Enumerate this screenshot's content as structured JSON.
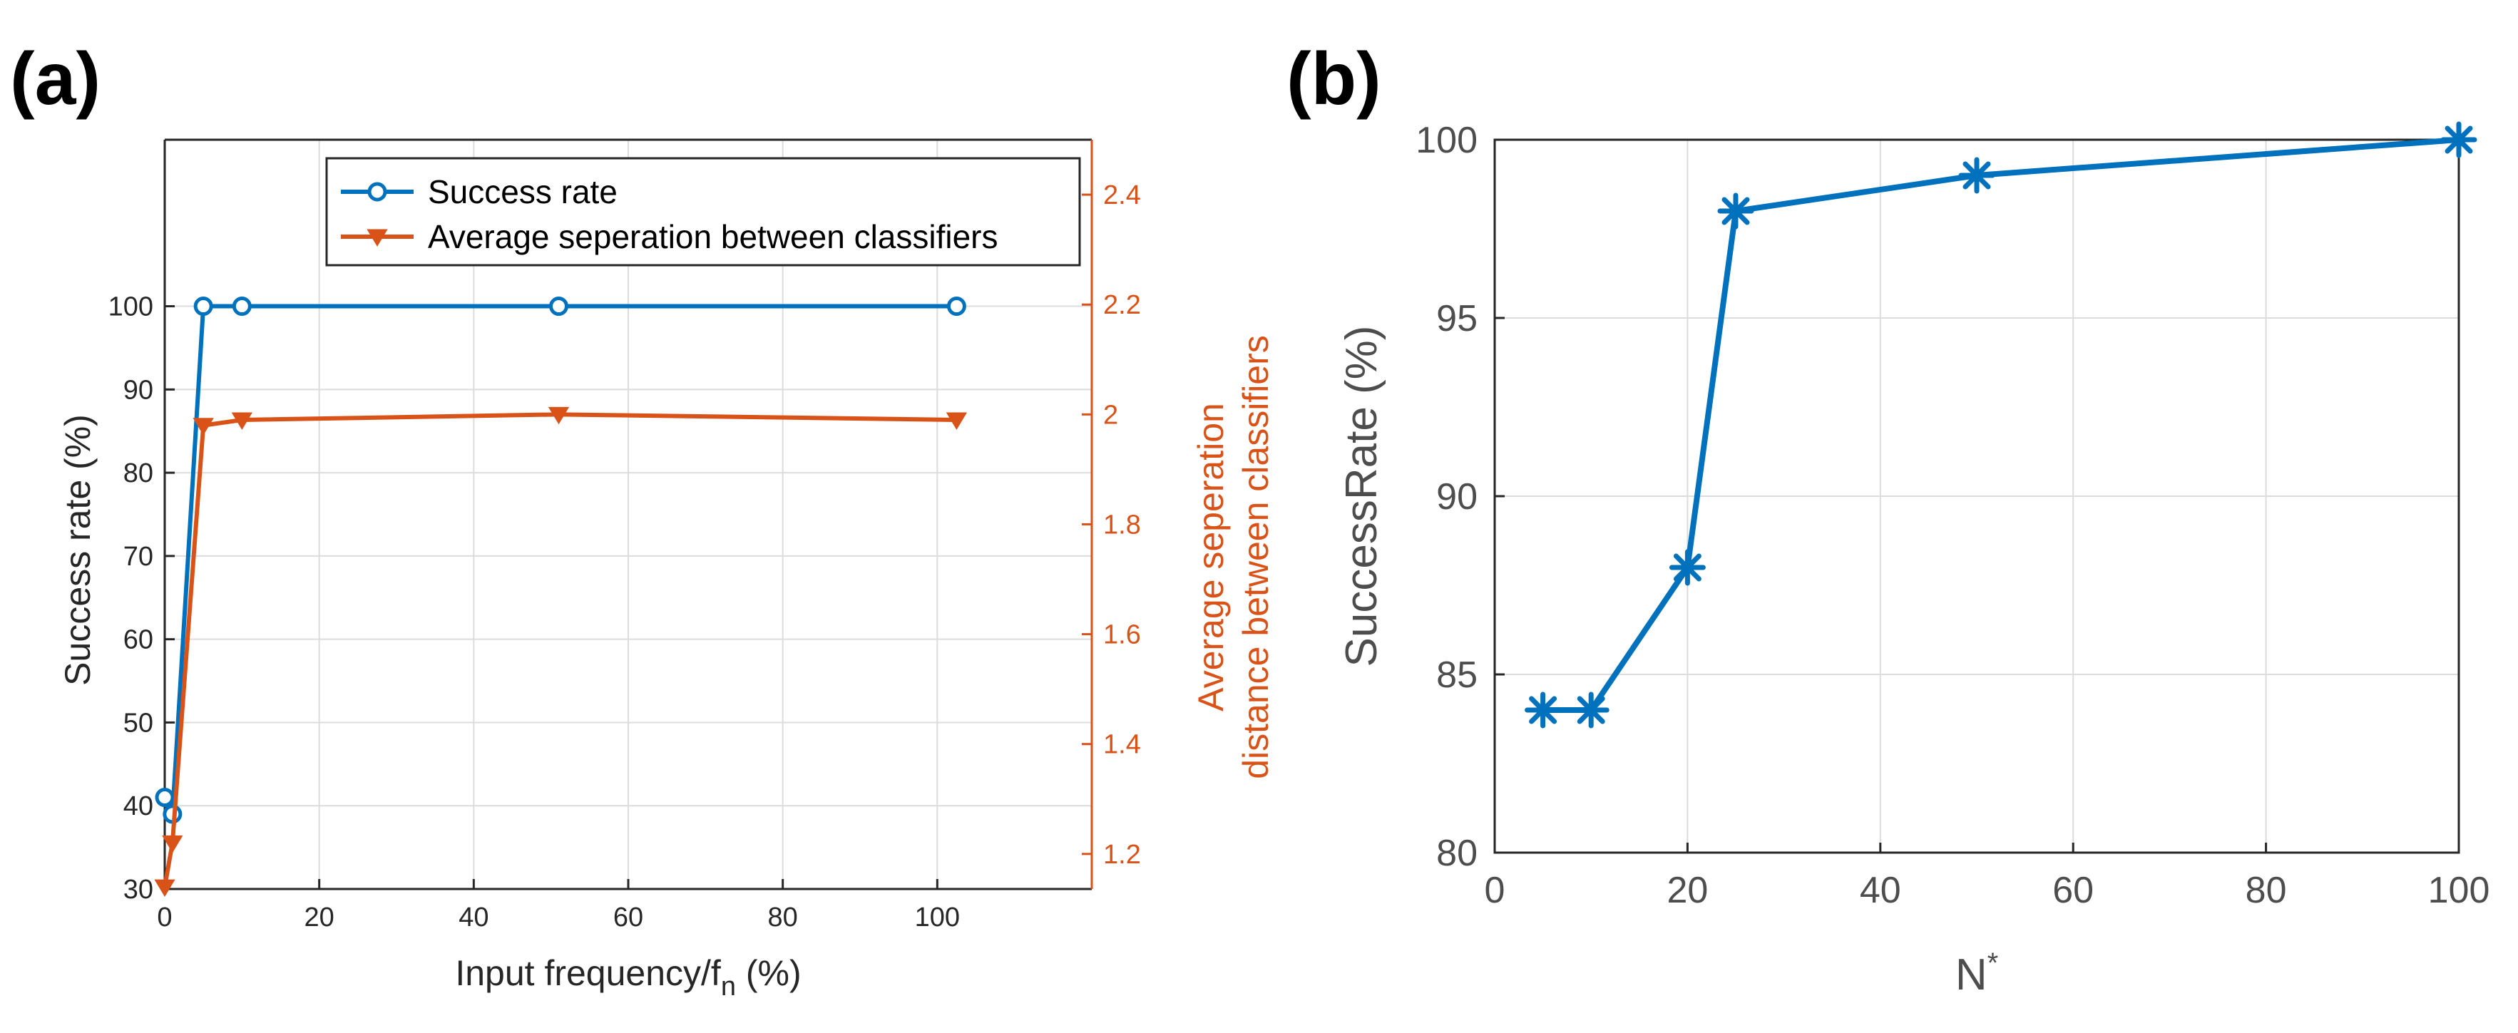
{
  "panels": [
    {
      "label": "(a)"
    },
    {
      "label": "(b)"
    }
  ],
  "chart_data": [
    {
      "type": "line",
      "panel": "(a)",
      "xlabel": "Input frequency/f",
      "xlabel_sub": "n",
      "xlabel_suffix": " (%)",
      "ylabel": "Success rate (%)",
      "y2label_line1": "Average seperation",
      "y2label_line2": "distance between classifiers",
      "xlim": [
        0,
        120
      ],
      "ylim": [
        30,
        120
      ],
      "y2lim": [
        1.1362,
        2.5
      ],
      "xticks": [
        0,
        20,
        40,
        60,
        80,
        100
      ],
      "yticks": [
        30,
        40,
        50,
        60,
        70,
        80,
        90,
        100
      ],
      "y2ticks": [
        1.2,
        1.4,
        1.6,
        1.8,
        2.0,
        2.2,
        2.4
      ],
      "y2tick_labels": [
        "1.2",
        "1.4",
        "1.6",
        "1.8",
        "2",
        "2.2",
        "2.4"
      ],
      "grid": true,
      "legend_position": "top-right",
      "series": [
        {
          "name": "Success rate",
          "axis": "left",
          "marker": "circle",
          "color": "#0072BD",
          "x": [
            0,
            1,
            5,
            10,
            51,
            102.5
          ],
          "y": [
            41,
            39,
            100,
            100,
            100,
            100
          ]
        },
        {
          "name": "Average seperation between classifiers",
          "axis": "right",
          "marker": "triangle-down",
          "color": "#D95319",
          "x": [
            0,
            1,
            5,
            10,
            51,
            102.5
          ],
          "y": [
            1.14,
            1.22,
            1.98,
            1.99,
            2.0,
            1.99
          ]
        }
      ]
    },
    {
      "type": "line",
      "panel": "(b)",
      "xlabel": "N",
      "xlabel_sup": "*",
      "ylabel": "SuccessRate (%)",
      "xlim": [
        0,
        100
      ],
      "ylim": [
        80,
        100
      ],
      "xticks": [
        0,
        20,
        40,
        60,
        80,
        100
      ],
      "yticks": [
        80,
        85,
        90,
        95,
        100
      ],
      "grid": true,
      "series": [
        {
          "name": "SuccessRate",
          "marker": "asterisk",
          "color": "#0072BD",
          "x": [
            5,
            10,
            20,
            25,
            50,
            100
          ],
          "y": [
            84,
            84,
            88,
            98,
            99,
            100
          ]
        }
      ]
    }
  ]
}
